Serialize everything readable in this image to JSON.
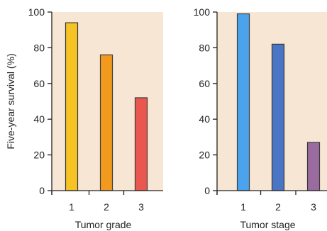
{
  "chart_data": [
    {
      "type": "bar",
      "categories": [
        "1",
        "2",
        "3"
      ],
      "values": [
        94,
        76,
        52
      ],
      "colors": [
        "#f6c324",
        "#f19a1e",
        "#e9574e"
      ],
      "xlabel": "Tumor grade",
      "ylabel": "Five-year survival (%)",
      "ylim": [
        0,
        100
      ],
      "yticks": [
        "0",
        "20",
        "40",
        "60",
        "80",
        "100"
      ],
      "background": "#f7e6d3",
      "grid": false,
      "legend": "none"
    },
    {
      "type": "bar",
      "categories": [
        "1",
        "2",
        "3"
      ],
      "values": [
        99,
        82,
        27
      ],
      "colors": [
        "#4aa3ec",
        "#4a74c4",
        "#9a6b9e"
      ],
      "xlabel": "Tumor stage",
      "ylabel": "",
      "ylim": [
        0,
        100
      ],
      "yticks": [
        "0",
        "20",
        "40",
        "60",
        "80",
        "100"
      ],
      "background": "#f7e6d3",
      "grid": false,
      "legend": "none"
    }
  ]
}
